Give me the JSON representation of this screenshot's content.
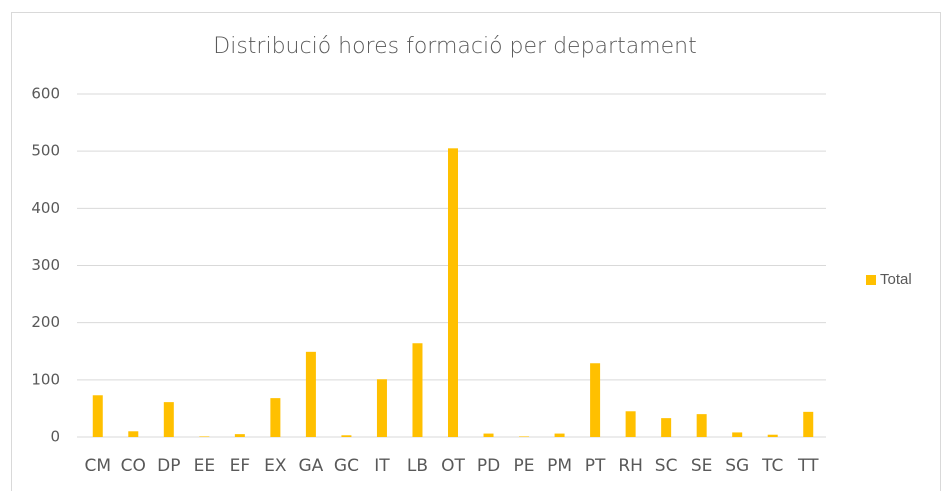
{
  "chart_data": {
    "type": "bar",
    "title": "Distribució hores formació per departament",
    "categories": [
      "CM",
      "CO",
      "DP",
      "EE",
      "EF",
      "EX",
      "GA",
      "GC",
      "IT",
      "LB",
      "OT",
      "PD",
      "PE",
      "PM",
      "PT",
      "RH",
      "SC",
      "SE",
      "SG",
      "TC",
      "TT"
    ],
    "series": [
      {
        "name": "Total",
        "color": "#ffc000",
        "values": [
          73,
          10,
          61,
          1,
          5,
          68,
          149,
          3,
          101,
          164,
          505,
          6,
          1,
          6,
          129,
          45,
          33,
          40,
          8,
          4,
          44
        ]
      }
    ],
    "ylim": [
      0,
      600
    ],
    "yticks": [
      0,
      100,
      200,
      300,
      400,
      500,
      600
    ],
    "grid": true,
    "legend": "right"
  }
}
